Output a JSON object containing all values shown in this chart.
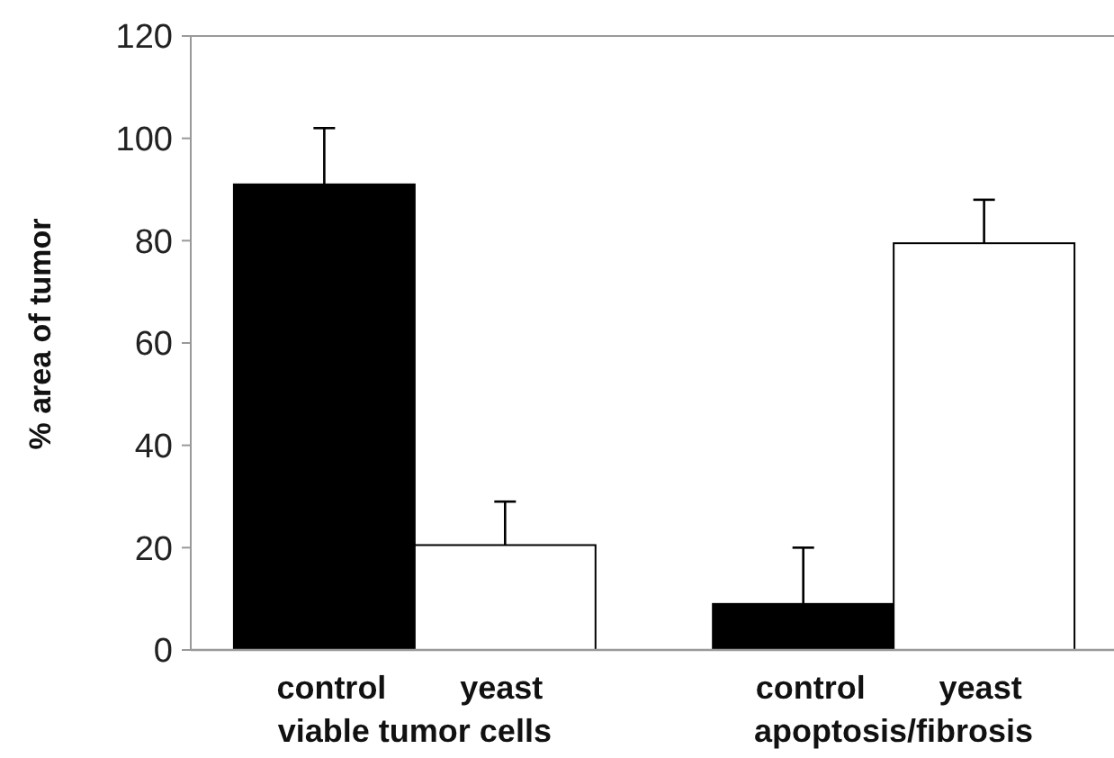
{
  "chart_data": {
    "type": "bar",
    "ylabel": "% area of tumor",
    "categories": [
      "viable tumor cells",
      "apoptosis/fibrosis"
    ],
    "series": [
      {
        "name": "control",
        "color": "#000000",
        "values": [
          91,
          9
        ],
        "errors": [
          11,
          11
        ]
      },
      {
        "name": "yeast",
        "color": "#ffffff",
        "values": [
          20.5,
          79.5
        ],
        "errors": [
          8.5,
          8.5
        ]
      }
    ],
    "ylim": [
      0,
      120
    ],
    "yticks": [
      0,
      20,
      40,
      60,
      80,
      100,
      120
    ],
    "grid": false
  }
}
